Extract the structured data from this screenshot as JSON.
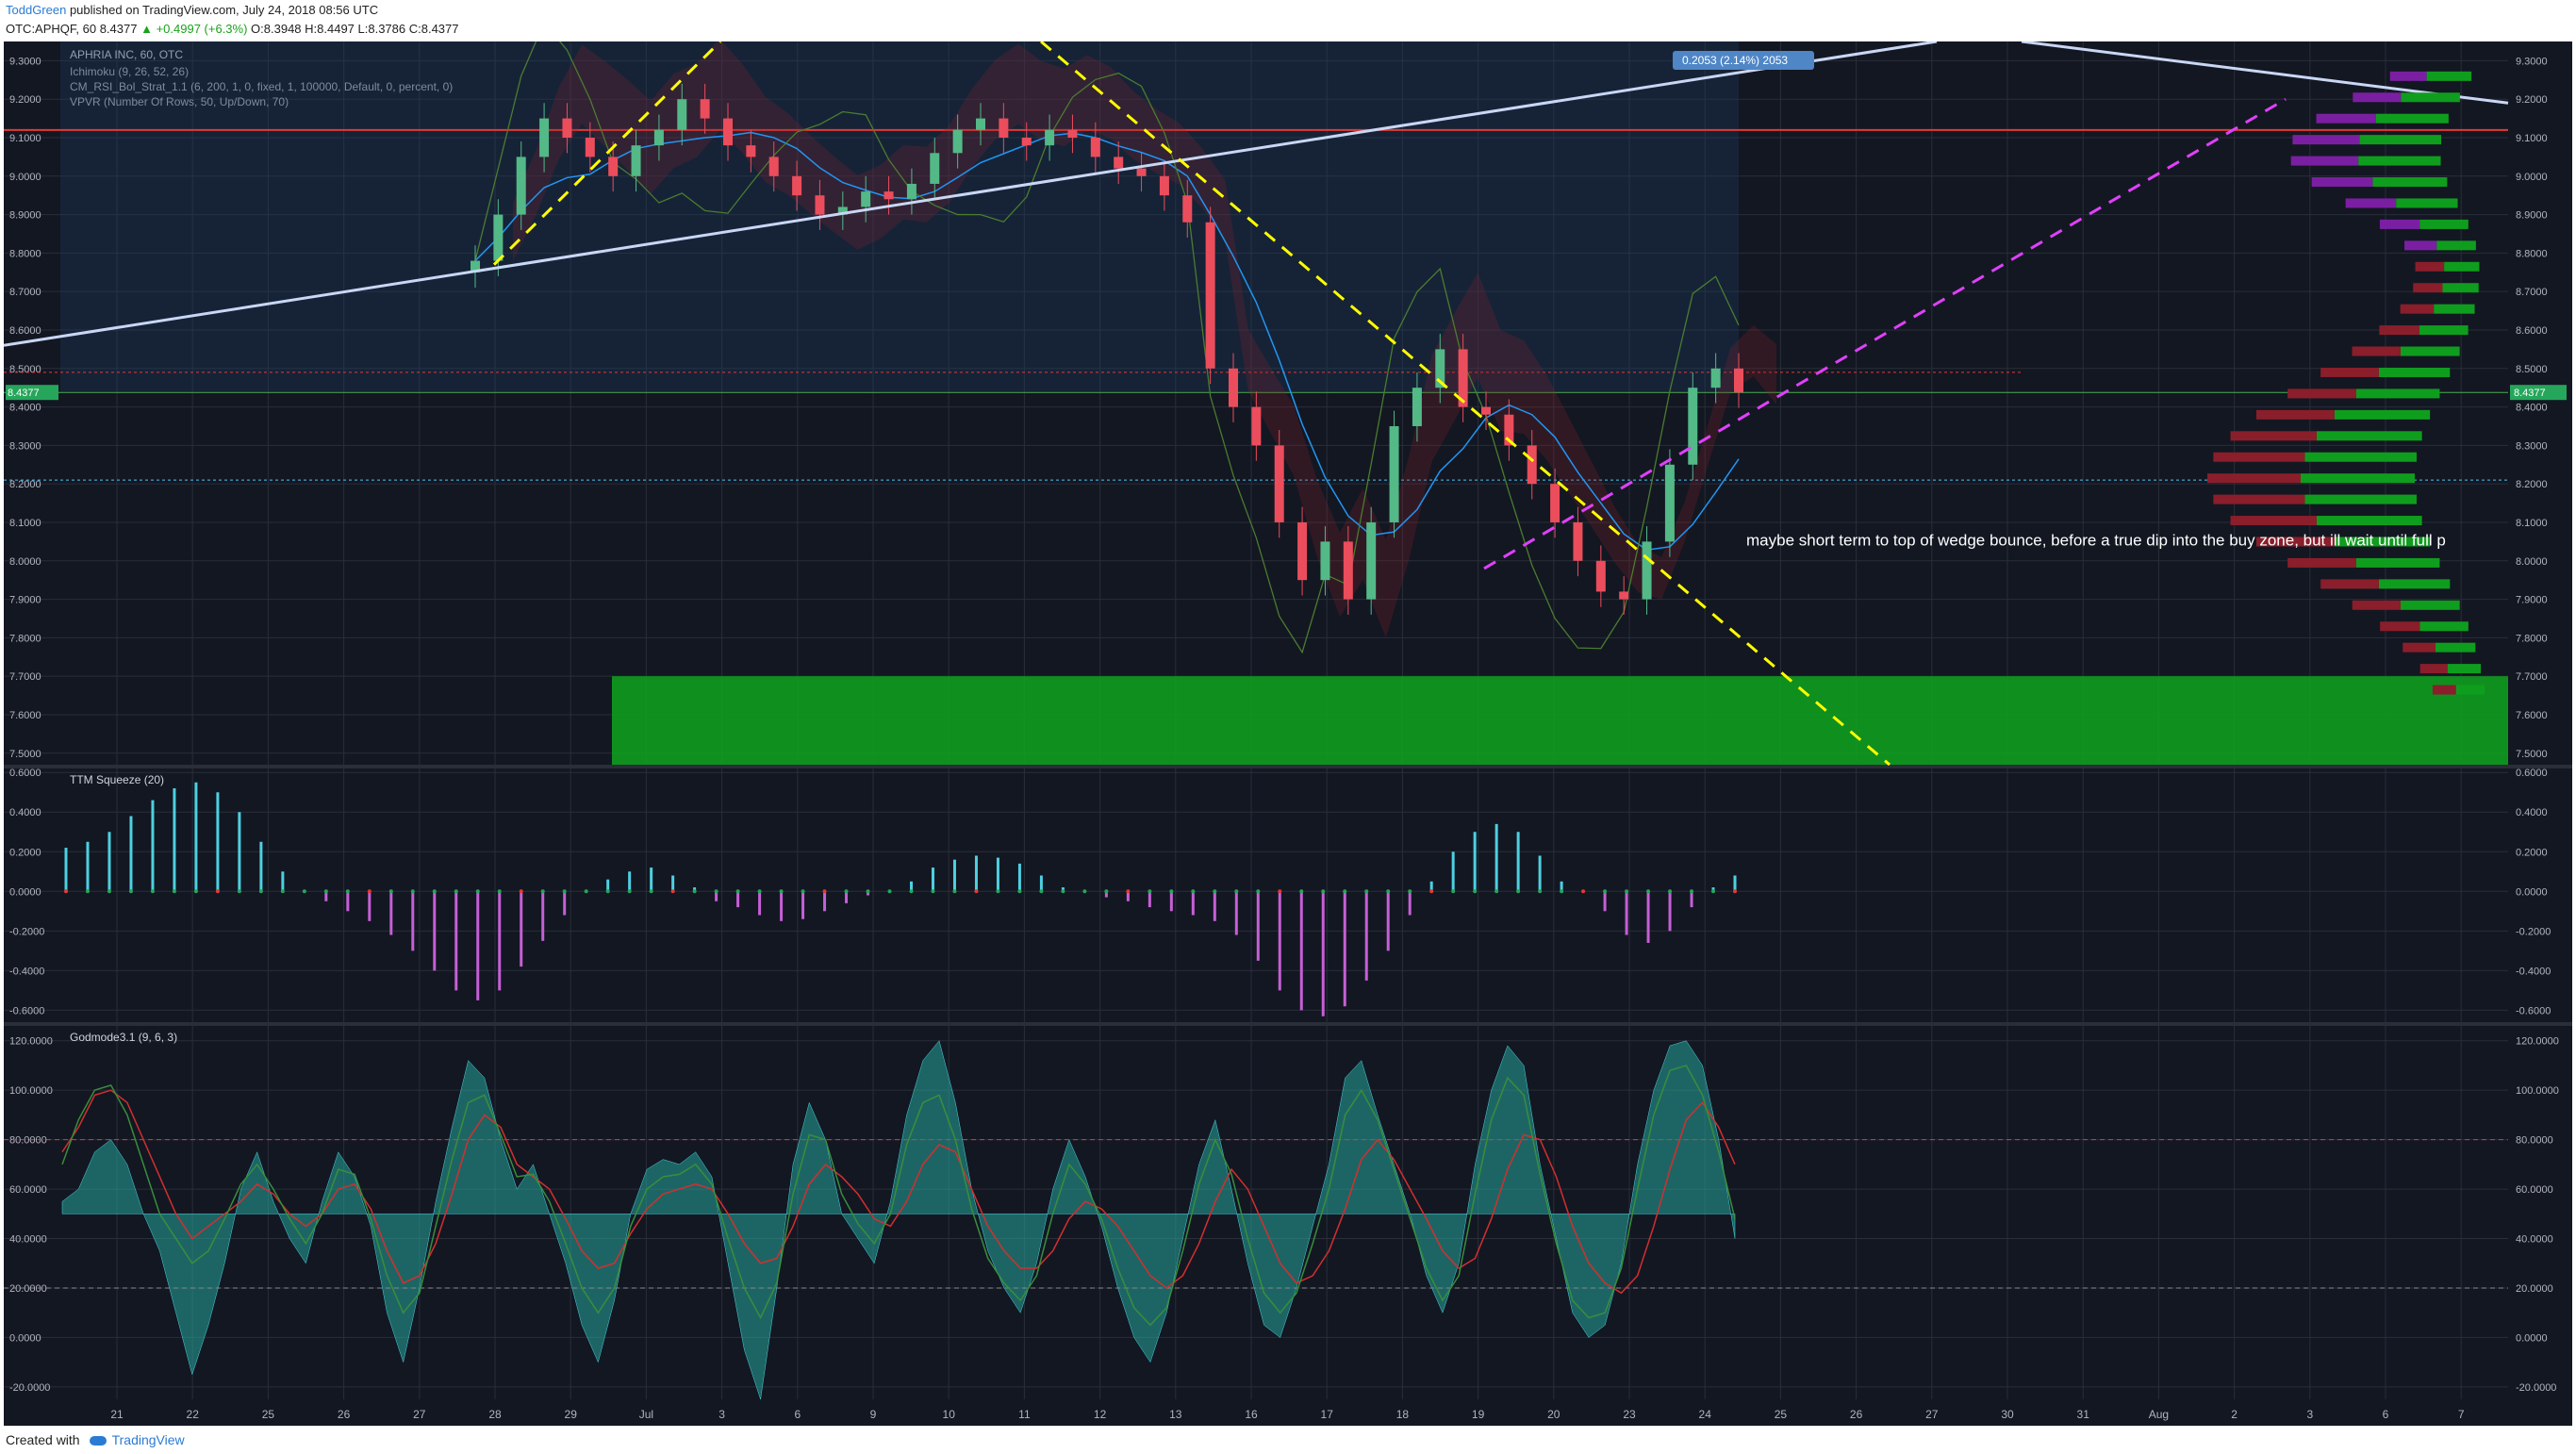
{
  "header": {
    "author": "ToddGreen",
    "published_text": "published on TradingView.com, July 24, 2018 08:56 UTC",
    "symbol_line": "OTC:APHQF, 60",
    "last_price": "8.4377",
    "change": "▲ +0.4997 (+6.3%)",
    "ohlc": "O:8.3948 H:8.4497 L:8.3786 C:8.4377"
  },
  "footer": {
    "created_with": "Created with",
    "brand": "TradingView"
  },
  "colors": {
    "background": "#131722",
    "grid": "#2a2e39",
    "axis_text": "#b2b5be",
    "up": "#53b987",
    "down": "#eb4d5c",
    "trendline": "#c9d7f5",
    "wedge_yellow": "#ffff00",
    "wedge_magenta": "#e040fb",
    "buy_zone": "#0f9d1e",
    "squeeze_up": "#4dd0e1",
    "squeeze_down": "#c65fd6",
    "godmode_fill": "#26a69a"
  },
  "chart_data": [
    {
      "type": "candlestick",
      "title": "APHRIA INC, 60, OTC",
      "indicators": [
        "Ichimoku (9, 26, 52, 26)",
        "CM_RSI_Bol_Strat_1.1 (6, 200, 1, 0, fixed, 1, 100000, Default, 0, percent, 0)",
        "VPVR (Number Of Rows, 50, Up/Down, 70)"
      ],
      "y_ticks": [
        "9.3000",
        "9.2000",
        "9.1000",
        "9.0000",
        "8.9000",
        "8.8000",
        "8.7000",
        "8.6000",
        "8.5000",
        "8.4000",
        "8.3000",
        "8.2000",
        "8.1000",
        "8.0000",
        "7.9000",
        "7.8000",
        "7.7000",
        "7.6000",
        "7.5000"
      ],
      "ylim": [
        7.47,
        9.35
      ],
      "current_price_label": "8.4377",
      "measure_label": "0.2053 (2.14%) 2053",
      "annotation": "maybe short term to top of wedge bounce, before a true dip into the buy zone, but ill wait until full p",
      "buy_zone": [
        7.47,
        7.7
      ],
      "series": [
        {
          "name": "price",
          "values": [
            8.78,
            8.9,
            9.05,
            9.15,
            9.1,
            9.05,
            9.0,
            9.08,
            9.12,
            9.2,
            9.15,
            9.08,
            9.05,
            9.0,
            8.95,
            8.9,
            8.92,
            8.96,
            8.94,
            8.98,
            9.06,
            9.12,
            9.15,
            9.1,
            9.08,
            9.12,
            9.1,
            9.05,
            9.02,
            9.0,
            8.95,
            8.88,
            8.5,
            8.4,
            8.3,
            8.1,
            7.95,
            8.05,
            7.9,
            8.1,
            8.35,
            8.45,
            8.55,
            8.4,
            8.38,
            8.3,
            8.2,
            8.1,
            8.0,
            7.92,
            7.9,
            8.05,
            8.25,
            8.45,
            8.5,
            8.4377
          ]
        }
      ]
    },
    {
      "type": "bar",
      "title": "TTM Squeeze (20)",
      "y_ticks": [
        "0.6000",
        "0.4000",
        "0.2000",
        "0.0000",
        "-0.2000",
        "-0.4000",
        "-0.6000"
      ],
      "ylim": [
        -0.66,
        0.62
      ],
      "values": [
        0.22,
        0.25,
        0.3,
        0.38,
        0.46,
        0.52,
        0.55,
        0.5,
        0.4,
        0.25,
        0.1,
        0.0,
        -0.05,
        -0.1,
        -0.15,
        -0.22,
        -0.3,
        -0.4,
        -0.5,
        -0.55,
        -0.5,
        -0.38,
        -0.25,
        -0.12,
        0.0,
        0.06,
        0.1,
        0.12,
        0.08,
        0.02,
        -0.05,
        -0.08,
        -0.12,
        -0.15,
        -0.14,
        -0.1,
        -0.06,
        -0.02,
        0.0,
        0.05,
        0.12,
        0.16,
        0.18,
        0.17,
        0.14,
        0.08,
        0.02,
        0.0,
        -0.03,
        -0.05,
        -0.08,
        -0.1,
        -0.12,
        -0.15,
        -0.22,
        -0.35,
        -0.5,
        -0.6,
        -0.63,
        -0.58,
        -0.45,
        -0.3,
        -0.12,
        0.05,
        0.2,
        0.3,
        0.34,
        0.3,
        0.18,
        0.05,
        0.0,
        -0.1,
        -0.22,
        -0.26,
        -0.2,
        -0.08,
        0.02,
        0.08
      ]
    },
    {
      "type": "area",
      "title": "Godmode3.1 (9, 6, 3)",
      "y_ticks": [
        "120.0000",
        "100.0000",
        "80.0000",
        "60.0000",
        "40.0000",
        "20.0000",
        "0.0000",
        "-20.0000"
      ],
      "ylim": [
        -25,
        126
      ],
      "baseline": 50,
      "levels": [
        80,
        20
      ],
      "values": [
        55,
        60,
        75,
        80,
        70,
        50,
        35,
        10,
        -15,
        5,
        30,
        60,
        75,
        55,
        40,
        30,
        55,
        75,
        65,
        45,
        10,
        -10,
        20,
        55,
        85,
        112,
        105,
        80,
        60,
        70,
        50,
        30,
        5,
        -10,
        15,
        50,
        68,
        72,
        70,
        75,
        65,
        30,
        -5,
        -25,
        20,
        70,
        95,
        80,
        50,
        40,
        30,
        55,
        90,
        112,
        120,
        95,
        60,
        35,
        20,
        10,
        30,
        60,
        80,
        65,
        45,
        20,
        0,
        -10,
        10,
        40,
        70,
        88,
        60,
        30,
        5,
        0,
        20,
        45,
        70,
        105,
        112,
        90,
        70,
        50,
        25,
        10,
        30,
        70,
        100,
        118,
        110,
        70,
        40,
        10,
        0,
        5,
        30,
        70,
        100,
        118,
        120,
        110,
        80,
        40
      ],
      "series": [
        {
          "name": "red",
          "values": [
            75,
            85,
            98,
            100,
            95,
            80,
            65,
            50,
            40,
            45,
            50,
            55,
            62,
            58,
            50,
            45,
            50,
            60,
            62,
            52,
            35,
            22,
            25,
            38,
            58,
            80,
            90,
            85,
            70,
            65,
            60,
            48,
            35,
            28,
            30,
            42,
            52,
            58,
            60,
            62,
            60,
            50,
            38,
            30,
            32,
            45,
            62,
            70,
            65,
            58,
            48,
            45,
            55,
            70,
            78,
            75,
            60,
            45,
            35,
            28,
            28,
            35,
            48,
            55,
            52,
            45,
            35,
            25,
            20,
            25,
            38,
            55,
            68,
            60,
            45,
            30,
            22,
            25,
            35,
            52,
            72,
            80,
            72,
            60,
            48,
            35,
            28,
            32,
            48,
            68,
            82,
            80,
            65,
            45,
            30,
            22,
            18,
            25,
            45,
            68,
            88,
            95,
            85,
            70
          ]
        },
        {
          "name": "green",
          "values": [
            70,
            88,
            100,
            102,
            90,
            70,
            50,
            40,
            30,
            35,
            48,
            62,
            70,
            60,
            48,
            38,
            50,
            68,
            66,
            48,
            25,
            10,
            18,
            45,
            72,
            95,
            98,
            82,
            65,
            66,
            55,
            38,
            20,
            10,
            20,
            45,
            60,
            65,
            66,
            70,
            62,
            40,
            20,
            8,
            22,
            58,
            82,
            80,
            58,
            46,
            38,
            50,
            78,
            95,
            98,
            80,
            52,
            32,
            22,
            15,
            25,
            50,
            70,
            62,
            48,
            28,
            12,
            5,
            12,
            35,
            62,
            80,
            66,
            40,
            18,
            10,
            18,
            38,
            60,
            90,
            100,
            88,
            68,
            48,
            28,
            15,
            25,
            58,
            88,
            105,
            98,
            66,
            38,
            15,
            8,
            10,
            28,
            60,
            90,
            108,
            110,
            98,
            75,
            48
          ]
        }
      ]
    }
  ],
  "x_ticks": [
    "21",
    "22",
    "25",
    "26",
    "27",
    "28",
    "29",
    "Jul",
    "3",
    "6",
    "9",
    "10",
    "11",
    "12",
    "13",
    "16",
    "17",
    "18",
    "19",
    "20",
    "23",
    "24",
    "25",
    "26",
    "27",
    "30",
    "31",
    "Aug",
    "2",
    "3",
    "6",
    "7"
  ]
}
